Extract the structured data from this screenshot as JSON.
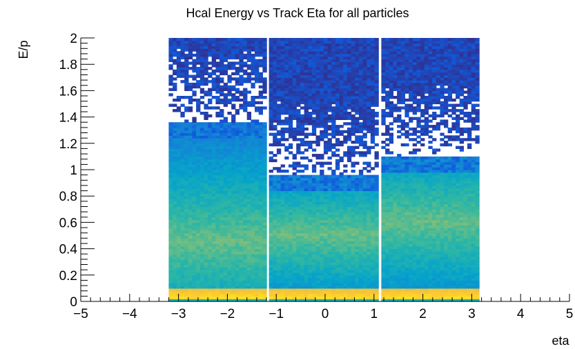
{
  "chart_data": {
    "type": "heatmap",
    "title": "Hcal Energy vs Track Eta for all particles",
    "xlabel": "eta",
    "ylabel": "E/p",
    "xlim": [
      -5,
      5
    ],
    "ylim": [
      0,
      2
    ],
    "x_ticks": [
      -5,
      -4,
      -3,
      -2,
      -1,
      0,
      1,
      2,
      3,
      4,
      5
    ],
    "y_ticks": [
      0,
      0.2,
      0.4,
      0.6,
      0.8,
      1,
      1.2,
      1.4,
      1.6,
      1.8,
      2
    ],
    "y_tick_labels": [
      "0",
      "0.2",
      "0.4",
      "0.6",
      "0.8",
      "1",
      "1.2",
      "1.4",
      "1.6",
      "1.8",
      "2"
    ],
    "x_tick_labels": [
      "−5",
      "−4",
      "−3",
      "−2",
      "−1",
      "0",
      "1",
      "2",
      "3",
      "4",
      "5"
    ],
    "grid": false,
    "colormap": [
      "#352a87",
      "#0f5cdd",
      "#1481d6",
      "#06a4ca",
      "#2eb7a4",
      "#87bf77",
      "#d1bb59",
      "#fec832",
      "#f9fb0e"
    ],
    "regions": [
      {
        "eta_range": [
          -3.2,
          -1.2
        ],
        "max_ep": 1.35,
        "peak_ep": 0.45
      },
      {
        "eta_range": [
          -1.15,
          1.08
        ],
        "max_ep": 0.95,
        "peak_ep": 0.5
      },
      {
        "eta_range": [
          1.15,
          3.15
        ],
        "max_ep": 1.1,
        "peak_ep": 0.6
      }
    ],
    "gaps_eta": [
      -1.18,
      1.1
    ],
    "high_density_band_ep": [
      0,
      0.08
    ]
  }
}
